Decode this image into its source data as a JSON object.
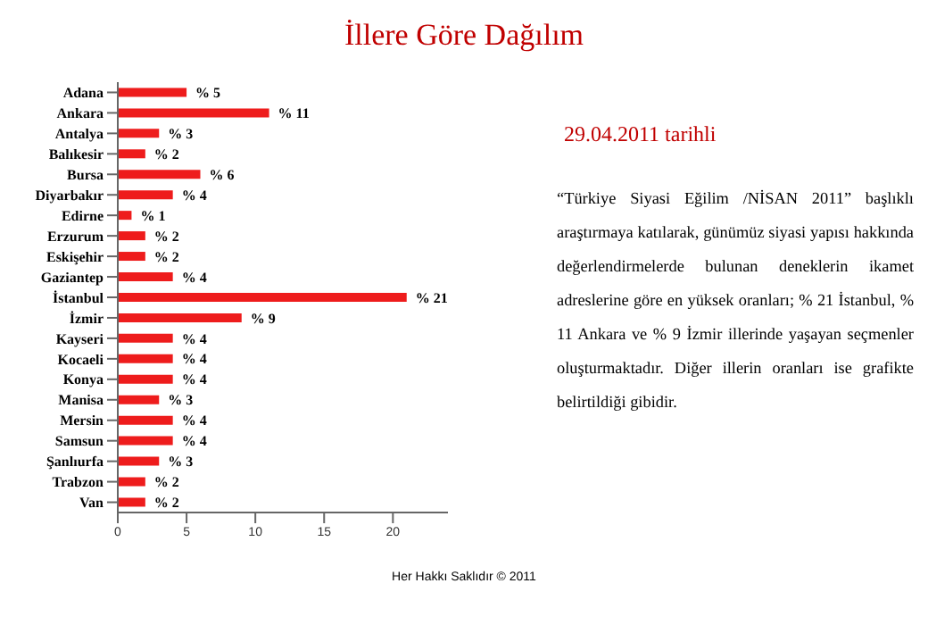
{
  "chart_data": {
    "type": "bar",
    "orientation": "horizontal",
    "title": "İllere Göre Dağılım",
    "categories": [
      "Adana",
      "Ankara",
      "Antalya",
      "Balıkesir",
      "Bursa",
      "Diyarbakır",
      "Edirne",
      "Erzurum",
      "Eskişehir",
      "Gaziantep",
      "İstanbul",
      "İzmir",
      "Kayseri",
      "Kocaeli",
      "Konya",
      "Manisa",
      "Mersin",
      "Samsun",
      "Şanlıurfa",
      "Trabzon",
      "Van"
    ],
    "values": [
      5,
      11,
      3,
      2,
      6,
      4,
      1,
      2,
      2,
      4,
      21,
      9,
      4,
      4,
      4,
      3,
      4,
      4,
      3,
      2,
      2
    ],
    "value_labels": [
      "% 5",
      "% 11",
      "% 3",
      "% 2",
      "% 6",
      "% 4",
      "% 1",
      "% 2",
      "% 2",
      "% 4",
      "% 21",
      "% 9",
      "% 4",
      "% 4",
      "% 4",
      "% 3",
      "% 4",
      "% 4",
      "% 3",
      "% 2",
      "% 2"
    ],
    "color": "#ee1c1c",
    "xlim": [
      0,
      24
    ],
    "xticks": [
      0,
      5,
      10,
      15,
      20
    ],
    "grid": false,
    "legend": false,
    "annotations": [
      "29.04.2011 tarihli",
      "“Türkiye Siyasi Eğilim /NİSAN 2011” başlıklı araştırmaya katılarak, günümüz siyasi yapısı hakkında değerlendirmelerde bulunan deneklerin ikamet adreslerine göre en yüksek oranları; % 21 İstanbul, % 11 Ankara ve % 9 İzmir illerinde yaşayan seçmenler oluşturmaktadır. Diğer illerin oranları ise grafikte belirtildiği gibidir.",
      "Her Hakkı Saklıdır © 2011"
    ]
  }
}
